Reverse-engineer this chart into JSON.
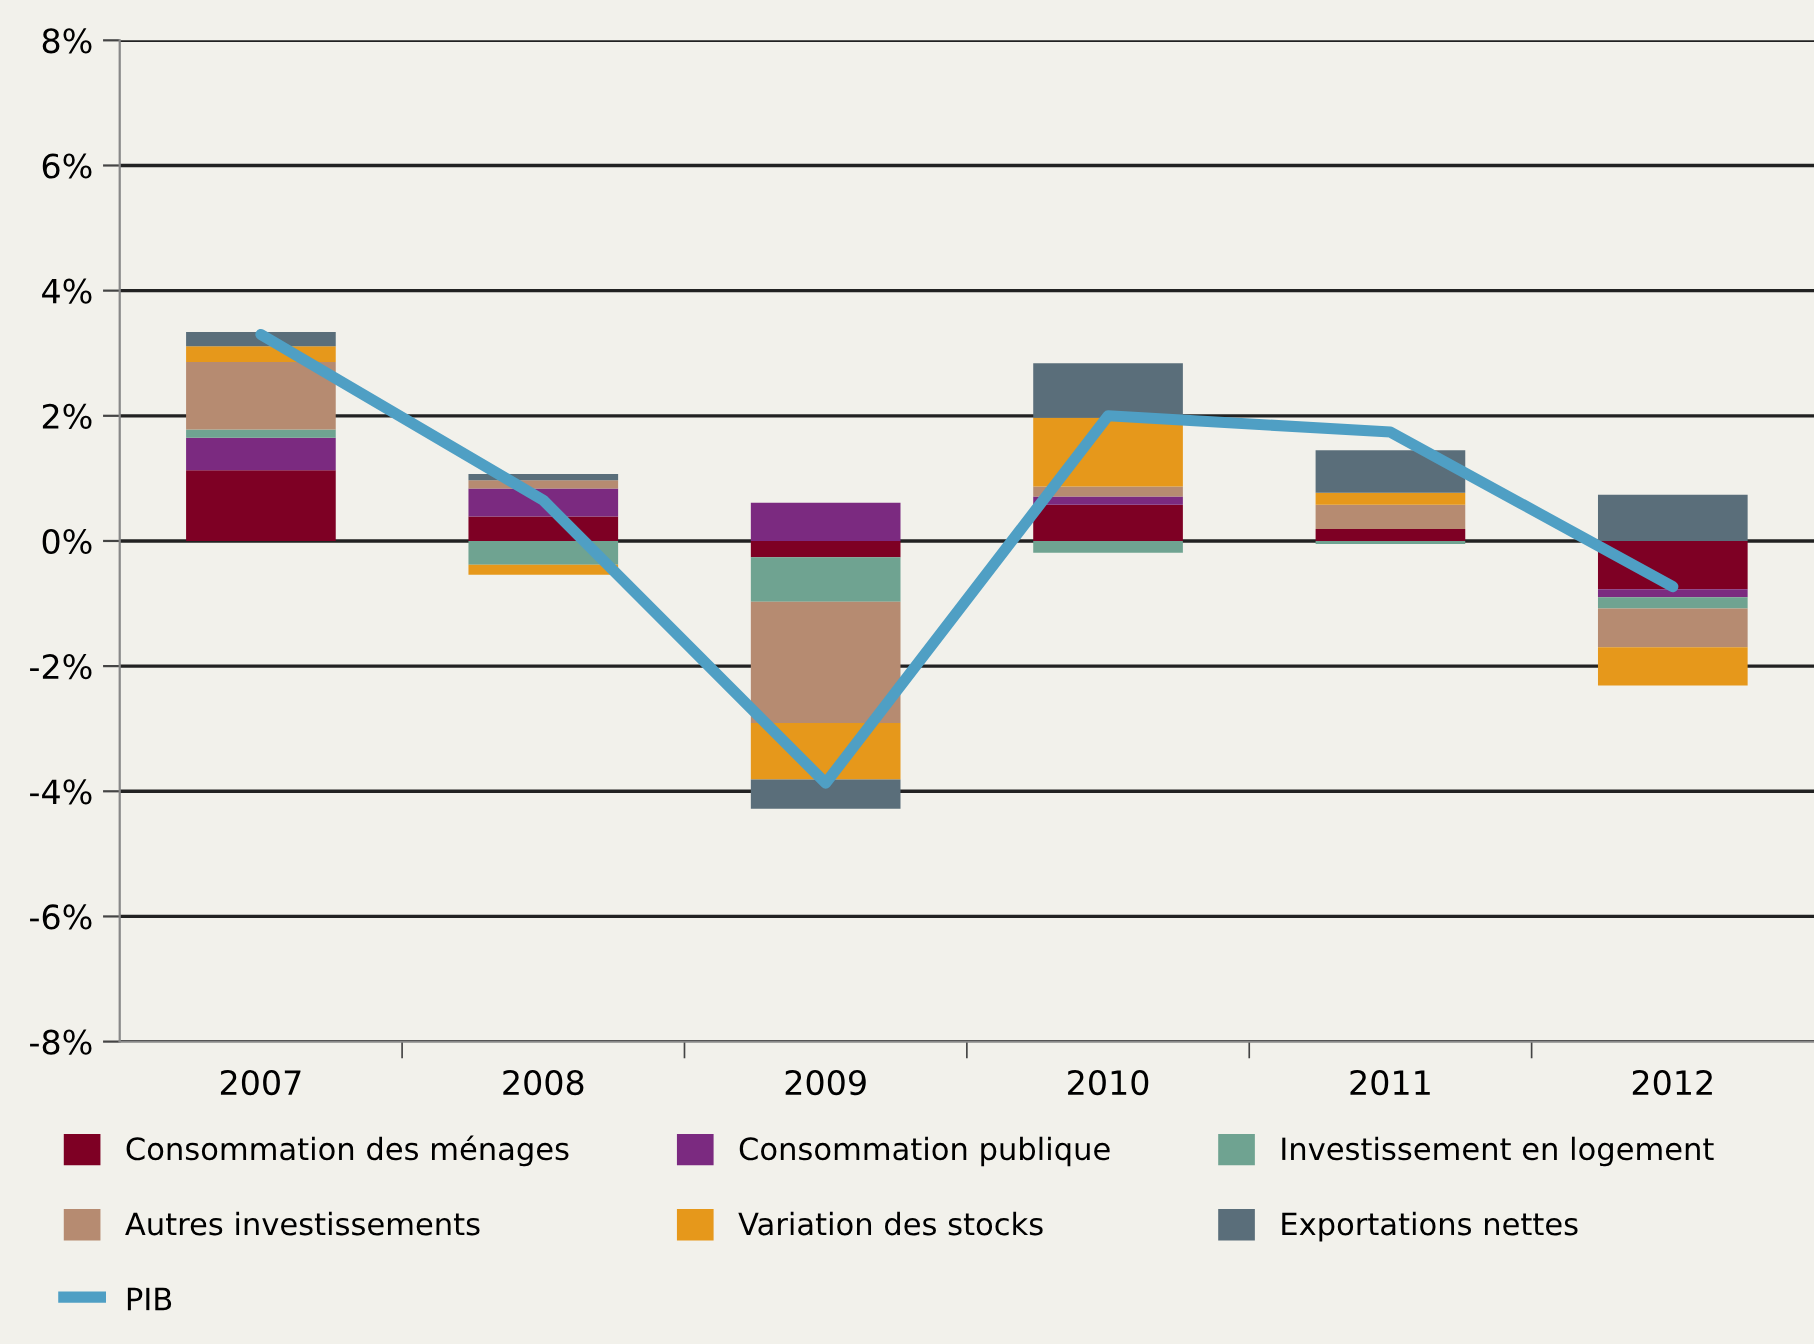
{
  "chart_data": {
    "type": "bar",
    "stacked": true,
    "categories": [
      "2007",
      "2008",
      "2009",
      "2010",
      "2011",
      "2012"
    ],
    "series": [
      {
        "name": "Consommation des ménages",
        "color": "#7e0024",
        "values": [
          1.13,
          0.39,
          -0.26,
          0.58,
          0.19,
          -0.77
        ]
      },
      {
        "name": "Consommation publique",
        "color": "#7b2a80",
        "values": [
          0.52,
          0.45,
          0.61,
          0.13,
          null,
          -0.13
        ]
      },
      {
        "name": "Investissement en logement",
        "color": "#6fa391",
        "values": [
          0.13,
          -0.38,
          -0.71,
          -0.19,
          -0.05,
          -0.18
        ]
      },
      {
        "name": "Autres investissements",
        "color": "#b68b71",
        "values": [
          1.08,
          0.13,
          -1.94,
          0.16,
          0.39,
          -0.62
        ]
      },
      {
        "name": "Variation des stocks",
        "color": "#e6981b",
        "values": [
          0.25,
          -0.16,
          -0.9,
          1.1,
          0.19,
          -0.61
        ]
      },
      {
        "name": "Exportations nettes",
        "color": "#5a6e7a",
        "values": [
          0.23,
          0.1,
          -0.47,
          0.87,
          0.68,
          0.74
        ]
      },
      {
        "name": "PIB",
        "type": "line",
        "color": "#4f9fc4",
        "line_style": "solid",
        "marker": "none",
        "values": [
          3.3,
          0.65,
          -3.87,
          2.0,
          1.74,
          -0.73
        ]
      }
    ],
    "ylim": [
      -8,
      8
    ],
    "yticks": [
      {
        "value": -8,
        "label": "-8%"
      },
      {
        "value": -6,
        "label": "-6%"
      },
      {
        "value": -4,
        "label": "-4%"
      },
      {
        "value": -2,
        "label": "-2%"
      },
      {
        "value": 0,
        "label": "0%"
      },
      {
        "value": 2,
        "label": "2%"
      },
      {
        "value": 4,
        "label": "4%"
      },
      {
        "value": 6,
        "label": "6%"
      },
      {
        "value": 8,
        "label": "8%"
      }
    ],
    "grid": "y",
    "legend": "bottom"
  }
}
